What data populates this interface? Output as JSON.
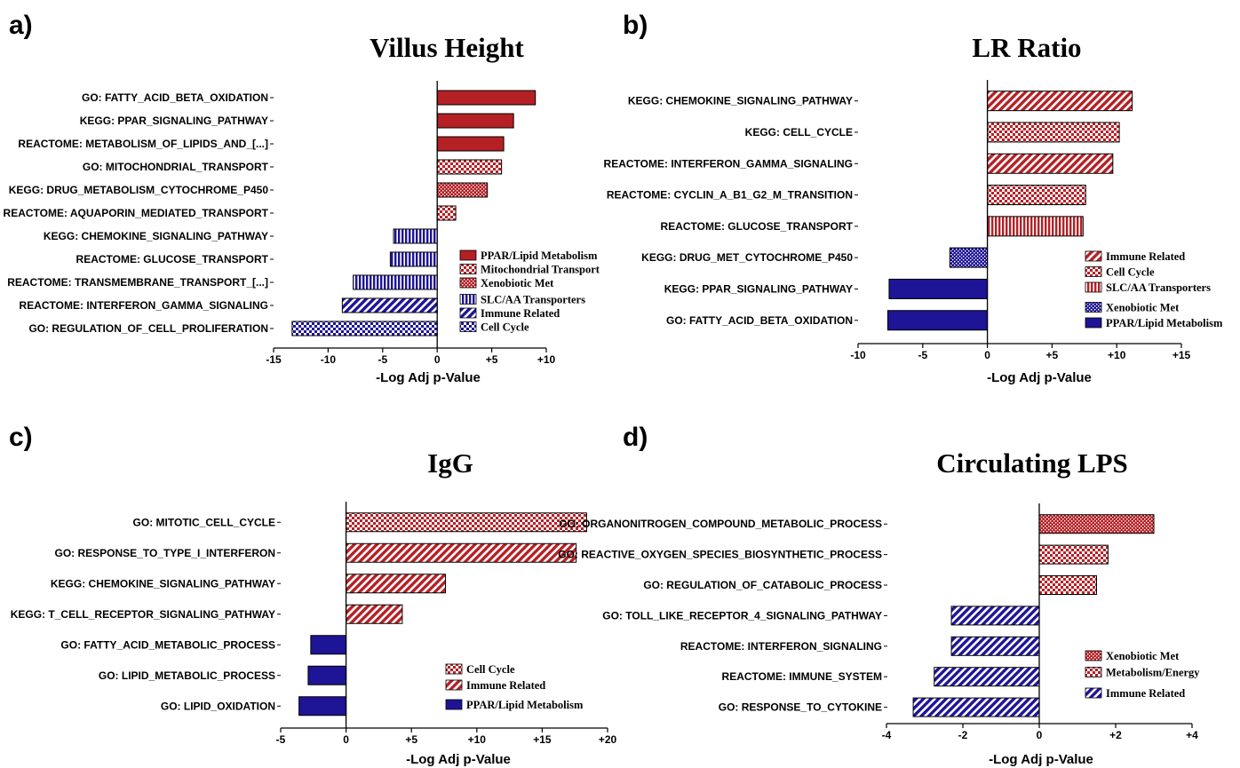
{
  "colors": {
    "red": "#b52025",
    "blue": "#1e1496",
    "axis": "#000000"
  },
  "chart_data": [
    {
      "type": "bar",
      "orientation": "horizontal",
      "panel_label": "a)",
      "title": "Villus Height",
      "xlabel": "-Log Adj p-Value",
      "ylabel": "",
      "xlim": [
        -15,
        10
      ],
      "xticks": [
        -15,
        -10,
        -5,
        0,
        5,
        10
      ],
      "xtick_labels": [
        "-15",
        "-10",
        "-5",
        "0",
        "+5",
        "+10"
      ],
      "categories": [
        "GO: FATTY_ACID_BETA_OXIDATION",
        "KEGG: PPAR_SIGNALING_PATHWAY",
        "REACTOME: METABOLISM_OF_LIPIDS_AND_[...]",
        "GO: MITOCHONDRIAL_TRANSPORT",
        "KEGG: DRUG_METABOLISM_CYTOCHROME_P450",
        "REACTOME: AQUAPORIN_MEDIATED_TRANSPORT",
        "KEGG: CHEMOKINE_SIGNALING_PATHWAY",
        "REACTOME: GLUCOSE_TRANSPORT",
        "REACTOME: TRANSMEMBRANE_TRANSPORT_[...]",
        "REACTOME: INTERFERON_GAMMA_SIGNALING",
        "GO: REGULATION_OF_CELL_PROLIFERATION"
      ],
      "values": [
        9.0,
        7.0,
        6.1,
        5.9,
        4.6,
        1.7,
        -4.0,
        -4.3,
        -7.7,
        -8.7,
        -13.3
      ],
      "groups": [
        "PPAR/Lipid Metabolism",
        "PPAR/Lipid Metabolism",
        "PPAR/Lipid Metabolism",
        "Mitochondrial Transport",
        "Xenobiotic Met",
        "Mitochondrial Transport",
        "SLC/AA Transporters",
        "SLC/AA Transporters",
        "SLC/AA Transporters",
        "Immune Related",
        "Cell Cycle"
      ],
      "legend": [
        {
          "label": "PPAR/Lipid Metabolism",
          "color": "red",
          "pattern": "solid"
        },
        {
          "label": "Mitochondrial Transport",
          "color": "red",
          "pattern": "checker"
        },
        {
          "label": "Xenobiotic Met",
          "color": "red",
          "pattern": "dots"
        },
        {
          "label": "SLC/AA Transporters",
          "color": "blue",
          "pattern": "vlines"
        },
        {
          "label": "Immune Related",
          "color": "blue",
          "pattern": "diag"
        },
        {
          "label": "Cell Cycle",
          "color": "blue",
          "pattern": "checker"
        }
      ],
      "legend_position": "bottom-right"
    },
    {
      "type": "bar",
      "orientation": "horizontal",
      "panel_label": "b)",
      "title": "LR Ratio",
      "xlabel": "-Log Adj p-Value",
      "ylabel": "",
      "xlim": [
        -10,
        15
      ],
      "xticks": [
        -10,
        -5,
        0,
        5,
        10,
        15
      ],
      "xtick_labels": [
        "-10",
        "-5",
        "0",
        "+5",
        "+10",
        "+15"
      ],
      "categories": [
        "KEGG: CHEMOKINE_SIGNALING_PATHWAY",
        "KEGG: CELL_CYCLE",
        "REACTOME: INTERFERON_GAMMA_SIGNALING",
        "REACTOME: CYCLIN_A_B1_G2_M_TRANSITION",
        "REACTOME: GLUCOSE_TRANSPORT",
        "KEGG: DRUG_MET_CYTOCHROME_P450",
        "KEGG: PPAR_SIGNALING_PATHWAY",
        "GO: FATTY_ACID_BETA_OXIDATION"
      ],
      "values": [
        11.2,
        10.2,
        9.7,
        7.6,
        7.4,
        -2.9,
        -7.6,
        -7.7
      ],
      "groups": [
        "Immune Related",
        "Cell Cycle",
        "Immune Related",
        "Cell Cycle",
        "SLC/AA Transporters",
        "Xenobiotic Met",
        "PPAR/Lipid Metabolism",
        "PPAR/Lipid Metabolism"
      ],
      "legend": [
        {
          "label": "Immune Related",
          "color": "red",
          "pattern": "diag"
        },
        {
          "label": "Cell Cycle",
          "color": "red",
          "pattern": "checker"
        },
        {
          "label": "SLC/AA Transporters",
          "color": "red",
          "pattern": "vlines"
        },
        {
          "label": "Xenobiotic Met",
          "color": "blue",
          "pattern": "dots"
        },
        {
          "label": "PPAR/Lipid Metabolism",
          "color": "blue",
          "pattern": "solid"
        }
      ],
      "legend_position": "bottom-right"
    },
    {
      "type": "bar",
      "orientation": "horizontal",
      "panel_label": "c)",
      "title": "IgG",
      "xlabel": "-Log Adj p-Value",
      "ylabel": "",
      "xlim": [
        -5,
        20
      ],
      "xticks": [
        -5,
        0,
        5,
        10,
        15,
        20
      ],
      "xtick_labels": [
        "-5",
        "0",
        "+5",
        "+10",
        "+15",
        "+20"
      ],
      "categories": [
        "GO: MITOTIC_CELL_CYCLE",
        "GO: RESPONSE_TO_TYPE_I_INTERFERON",
        "KEGG: CHEMOKINE_SIGNALING_PATHWAY",
        "KEGG: T_CELL_RECEPTOR_SIGNALING_PATHWAY",
        "GO: FATTY_ACID_METABOLIC_PROCESS",
        "GO: LIPID_METABOLIC_PROCESS",
        "GO: LIPID_OXIDATION"
      ],
      "values": [
        18.4,
        17.6,
        7.6,
        4.3,
        -2.7,
        -2.9,
        -3.6
      ],
      "groups": [
        "Cell Cycle",
        "Immune Related",
        "Immune Related",
        "Immune Related",
        "PPAR/Lipid Metabolism",
        "PPAR/Lipid Metabolism",
        "PPAR/Lipid Metabolism"
      ],
      "legend": [
        {
          "label": "Cell Cycle",
          "color": "red",
          "pattern": "checker"
        },
        {
          "label": "Immune Related",
          "color": "red",
          "pattern": "diag"
        },
        {
          "label": "PPAR/Lipid Metabolism",
          "color": "blue",
          "pattern": "solid"
        }
      ],
      "legend_position": "bottom-right"
    },
    {
      "type": "bar",
      "orientation": "horizontal",
      "panel_label": "d)",
      "title": "Circulating LPS",
      "xlabel": "-Log Adj p-Value",
      "ylabel": "",
      "xlim": [
        -4,
        4
      ],
      "xticks": [
        -4,
        -2,
        0,
        2,
        4
      ],
      "xtick_labels": [
        "-4",
        "-2",
        "0",
        "+2",
        "+4"
      ],
      "categories": [
        "GO: ORGANONITROGEN_COMPOUND_METABOLIC_PROCESS",
        "GO: REACTIVE_OXYGEN_SPECIES_BIOSYNTHETIC_PROCESS",
        "GO: REGULATION_OF_CATABOLIC_PROCESS",
        "GO: TOLL_LIKE_RECEPTOR_4_SIGNALING_PATHWAY",
        "REACTOME: INTERFERON_SIGNALING",
        "REACTOME: IMMUNE_SYSTEM",
        "GO: RESPONSE_TO_CYTOKINE"
      ],
      "values": [
        3.0,
        1.8,
        1.5,
        -2.3,
        -2.3,
        -2.75,
        -3.3
      ],
      "groups": [
        "Xenobiotic Met",
        "Metabolism/Energy",
        "Metabolism/Energy",
        "Immune Related",
        "Immune Related",
        "Immune Related",
        "Immune Related"
      ],
      "legend": [
        {
          "label": "Xenobiotic Met",
          "color": "red",
          "pattern": "dots"
        },
        {
          "label": "Metabolism/Energy",
          "color": "red",
          "pattern": "checker"
        },
        {
          "label": "Immune Related",
          "color": "blue",
          "pattern": "diag"
        }
      ],
      "legend_position": "bottom-right"
    }
  ]
}
